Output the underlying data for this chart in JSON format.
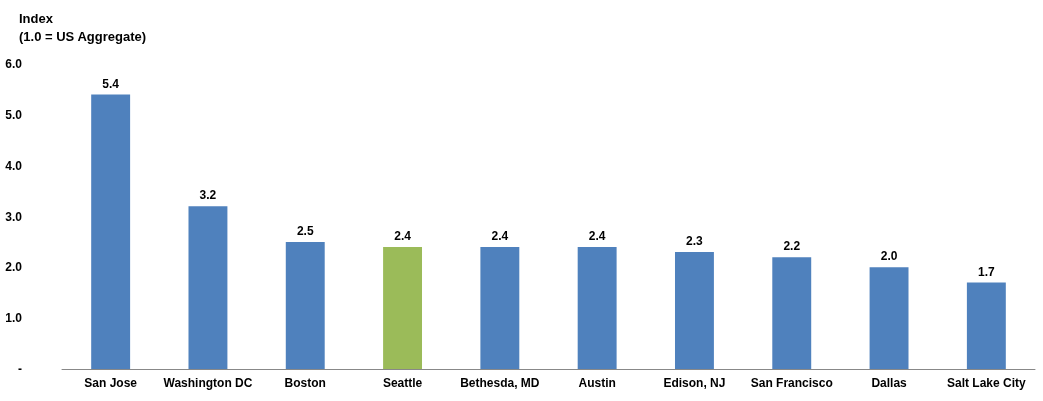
{
  "chart_data": {
    "type": "bar",
    "ylabel": "Index\n(1.0 = US Aggregate)",
    "categories": [
      "San Jose",
      "Washington DC",
      "Boston",
      "Seattle",
      "Bethesda, MD",
      "Austin",
      "Edison, NJ",
      "San Francisco",
      "Dallas",
      "Salt Lake City"
    ],
    "values": [
      5.4,
      3.2,
      2.5,
      2.4,
      2.4,
      2.4,
      2.3,
      2.2,
      2.0,
      1.7
    ],
    "value_labels": [
      "5.4",
      "3.2",
      "2.5",
      "2.4",
      "2.4",
      "2.4",
      "2.3",
      "2.2",
      "2.0",
      "1.7"
    ],
    "colors": [
      "#4f81bd",
      "#4f81bd",
      "#4f81bd",
      "#9bbb59",
      "#4f81bd",
      "#4f81bd",
      "#4f81bd",
      "#4f81bd",
      "#4f81bd",
      "#4f81bd"
    ],
    "ylim": [
      0,
      6
    ],
    "yticks": [
      {
        "value": 0,
        "label": "-"
      },
      {
        "value": 1,
        "label": "1.0"
      },
      {
        "value": 2,
        "label": "2.0"
      },
      {
        "value": 3,
        "label": "3.0"
      },
      {
        "value": 4,
        "label": "4.0"
      },
      {
        "value": 5,
        "label": "5.0"
      },
      {
        "value": 6,
        "label": "6.0"
      }
    ],
    "grid": false
  }
}
